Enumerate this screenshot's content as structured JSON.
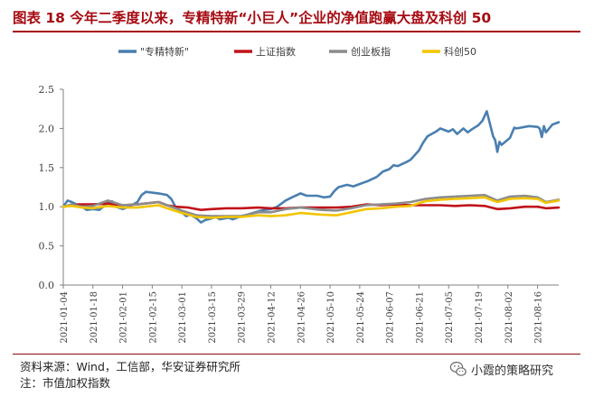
{
  "figure": {
    "title": "图表 18 今年二季度以来，专精特新“小巨人”企业的净值跑赢大盘及科创 50",
    "source": "资料来源：Wind，工信部，华安证券研究所",
    "note": "注：市值加权指数",
    "watermark": "小霞的策略研究",
    "watermark_icon": "wechat-icon",
    "accent_color": "#a60b12"
  },
  "chart_data": {
    "type": "line",
    "ylim": [
      0,
      2.5
    ],
    "yticks": [
      "0.0",
      "0.5",
      "1.0",
      "1.5",
      "2.0",
      "2.5"
    ],
    "ytick_values": [
      0,
      0.5,
      1.0,
      1.5,
      2.0,
      2.5
    ],
    "xlim": [
      "2021-01-04",
      "2021-08-26"
    ],
    "xticks": [
      "2021-01-04",
      "2021-01-18",
      "2021-02-01",
      "2021-02-15",
      "2021-03-01",
      "2021-03-15",
      "2021-03-29",
      "2021-04-12",
      "2021-04-26",
      "2021-05-10",
      "2021-05-24",
      "2021-06-07",
      "2021-06-21",
      "2021-07-05",
      "2021-07-19",
      "2021-08-02",
      "2021-08-16"
    ],
    "grid": false,
    "legend_position": "top",
    "series": [
      {
        "name": "\"专精特新\"",
        "color": "#4a7fb0",
        "points": [
          [
            "2021-01-04",
            1.0
          ],
          [
            "2021-01-06",
            1.08
          ],
          [
            "2021-01-08",
            1.06
          ],
          [
            "2021-01-11",
            1.02
          ],
          [
            "2021-01-13",
            1.0
          ],
          [
            "2021-01-15",
            0.96
          ],
          [
            "2021-01-18",
            0.97
          ],
          [
            "2021-01-21",
            0.96
          ],
          [
            "2021-01-25",
            1.05
          ],
          [
            "2021-01-27",
            1.07
          ],
          [
            "2021-01-29",
            1.0
          ],
          [
            "2021-02-01",
            0.97
          ],
          [
            "2021-02-04",
            1.0
          ],
          [
            "2021-02-08",
            1.06
          ],
          [
            "2021-02-10",
            1.15
          ],
          [
            "2021-02-12",
            1.19
          ],
          [
            "2021-02-18",
            1.17
          ],
          [
            "2021-02-22",
            1.15
          ],
          [
            "2021-02-24",
            1.1
          ],
          [
            "2021-02-26",
            1.0
          ],
          [
            "2021-03-01",
            0.93
          ],
          [
            "2021-03-03",
            0.88
          ],
          [
            "2021-03-05",
            0.9
          ],
          [
            "2021-03-08",
            0.85
          ],
          [
            "2021-03-10",
            0.8
          ],
          [
            "2021-03-12",
            0.83
          ],
          [
            "2021-03-15",
            0.85
          ],
          [
            "2021-03-17",
            0.87
          ],
          [
            "2021-03-19",
            0.84
          ],
          [
            "2021-03-23",
            0.86
          ],
          [
            "2021-03-25",
            0.84
          ],
          [
            "2021-03-29",
            0.88
          ],
          [
            "2021-04-01",
            0.9
          ],
          [
            "2021-04-06",
            0.94
          ],
          [
            "2021-04-09",
            0.96
          ],
          [
            "2021-04-12",
            0.97
          ],
          [
            "2021-04-15",
            1.0
          ],
          [
            "2021-04-19",
            1.08
          ],
          [
            "2021-04-22",
            1.12
          ],
          [
            "2021-04-26",
            1.17
          ],
          [
            "2021-04-29",
            1.14
          ],
          [
            "2021-05-04",
            1.14
          ],
          [
            "2021-05-07",
            1.12
          ],
          [
            "2021-05-10",
            1.13
          ],
          [
            "2021-05-12",
            1.2
          ],
          [
            "2021-05-14",
            1.25
          ],
          [
            "2021-05-18",
            1.28
          ],
          [
            "2021-05-21",
            1.26
          ],
          [
            "2021-05-24",
            1.29
          ],
          [
            "2021-05-26",
            1.31
          ],
          [
            "2021-05-28",
            1.33
          ],
          [
            "2021-06-01",
            1.38
          ],
          [
            "2021-06-04",
            1.45
          ],
          [
            "2021-06-07",
            1.48
          ],
          [
            "2021-06-09",
            1.53
          ],
          [
            "2021-06-11",
            1.52
          ],
          [
            "2021-06-15",
            1.57
          ],
          [
            "2021-06-17",
            1.6
          ],
          [
            "2021-06-21",
            1.72
          ],
          [
            "2021-06-23",
            1.82
          ],
          [
            "2021-06-25",
            1.9
          ],
          [
            "2021-06-29",
            1.96
          ],
          [
            "2021-07-01",
            2.0
          ],
          [
            "2021-07-05",
            1.96
          ],
          [
            "2021-07-07",
            1.99
          ],
          [
            "2021-07-09",
            1.93
          ],
          [
            "2021-07-12",
            2.0
          ],
          [
            "2021-07-14",
            1.95
          ],
          [
            "2021-07-16",
            1.99
          ],
          [
            "2021-07-19",
            2.04
          ],
          [
            "2021-07-21",
            2.1
          ],
          [
            "2021-07-23",
            2.22
          ],
          [
            "2021-07-26",
            1.9
          ],
          [
            "2021-07-27",
            1.85
          ],
          [
            "2021-07-28",
            1.7
          ],
          [
            "2021-07-29",
            1.83
          ],
          [
            "2021-07-30",
            1.79
          ],
          [
            "2021-08-03",
            1.88
          ],
          [
            "2021-08-05",
            2.01
          ],
          [
            "2021-08-06",
            2.0
          ],
          [
            "2021-08-10",
            2.02
          ],
          [
            "2021-08-12",
            2.03
          ],
          [
            "2021-08-16",
            2.02
          ],
          [
            "2021-08-17",
            2.0
          ],
          [
            "2021-08-18",
            1.89
          ],
          [
            "2021-08-19",
            2.03
          ],
          [
            "2021-08-20",
            1.95
          ],
          [
            "2021-08-23",
            2.05
          ],
          [
            "2021-08-26",
            2.08
          ]
        ]
      },
      {
        "name": "上证指数",
        "color": "#c0121a",
        "points": [
          [
            "2021-01-04",
            1.0
          ],
          [
            "2021-01-11",
            1.03
          ],
          [
            "2021-01-18",
            1.03
          ],
          [
            "2021-01-25",
            1.04
          ],
          [
            "2021-02-01",
            1.02
          ],
          [
            "2021-02-08",
            1.03
          ],
          [
            "2021-02-18",
            1.06
          ],
          [
            "2021-02-22",
            1.02
          ],
          [
            "2021-02-26",
            1.0
          ],
          [
            "2021-03-04",
            0.99
          ],
          [
            "2021-03-10",
            0.96
          ],
          [
            "2021-03-15",
            0.97
          ],
          [
            "2021-03-22",
            0.98
          ],
          [
            "2021-03-29",
            0.98
          ],
          [
            "2021-04-06",
            0.99
          ],
          [
            "2021-04-12",
            0.98
          ],
          [
            "2021-04-19",
            0.98
          ],
          [
            "2021-04-26",
            0.99
          ],
          [
            "2021-05-06",
            0.99
          ],
          [
            "2021-05-13",
            0.99
          ],
          [
            "2021-05-20",
            1.0
          ],
          [
            "2021-05-27",
            1.03
          ],
          [
            "2021-06-03",
            1.02
          ],
          [
            "2021-06-10",
            1.03
          ],
          [
            "2021-06-17",
            1.02
          ],
          [
            "2021-06-24",
            1.02
          ],
          [
            "2021-07-01",
            1.02
          ],
          [
            "2021-07-08",
            1.01
          ],
          [
            "2021-07-15",
            1.02
          ],
          [
            "2021-07-22",
            1.01
          ],
          [
            "2021-07-28",
            0.97
          ],
          [
            "2021-08-03",
            0.98
          ],
          [
            "2021-08-10",
            1.0
          ],
          [
            "2021-08-16",
            1.0
          ],
          [
            "2021-08-20",
            0.98
          ],
          [
            "2021-08-26",
            0.99
          ]
        ]
      },
      {
        "name": "创业板指",
        "color": "#8c8c8c",
        "points": [
          [
            "2021-01-04",
            1.0
          ],
          [
            "2021-01-08",
            1.03
          ],
          [
            "2021-01-13",
            1.0
          ],
          [
            "2021-01-18",
            1.01
          ],
          [
            "2021-01-25",
            1.08
          ],
          [
            "2021-02-01",
            1.02
          ],
          [
            "2021-02-08",
            1.03
          ],
          [
            "2021-02-18",
            1.06
          ],
          [
            "2021-02-22",
            1.02
          ],
          [
            "2021-03-01",
            0.95
          ],
          [
            "2021-03-08",
            0.89
          ],
          [
            "2021-03-15",
            0.88
          ],
          [
            "2021-03-22",
            0.88
          ],
          [
            "2021-03-29",
            0.88
          ],
          [
            "2021-04-06",
            0.93
          ],
          [
            "2021-04-12",
            0.93
          ],
          [
            "2021-04-19",
            0.97
          ],
          [
            "2021-04-26",
            0.99
          ],
          [
            "2021-05-06",
            0.96
          ],
          [
            "2021-05-13",
            0.95
          ],
          [
            "2021-05-20",
            0.98
          ],
          [
            "2021-05-27",
            1.02
          ],
          [
            "2021-06-03",
            1.03
          ],
          [
            "2021-06-10",
            1.04
          ],
          [
            "2021-06-17",
            1.06
          ],
          [
            "2021-06-24",
            1.1
          ],
          [
            "2021-07-01",
            1.12
          ],
          [
            "2021-07-08",
            1.13
          ],
          [
            "2021-07-15",
            1.14
          ],
          [
            "2021-07-22",
            1.15
          ],
          [
            "2021-07-28",
            1.08
          ],
          [
            "2021-08-03",
            1.13
          ],
          [
            "2021-08-10",
            1.14
          ],
          [
            "2021-08-16",
            1.12
          ],
          [
            "2021-08-20",
            1.06
          ],
          [
            "2021-08-26",
            1.09
          ]
        ]
      },
      {
        "name": "科创50",
        "color": "#f2c500",
        "points": [
          [
            "2021-01-04",
            1.0
          ],
          [
            "2021-01-08",
            1.01
          ],
          [
            "2021-01-13",
            0.99
          ],
          [
            "2021-01-18",
            0.98
          ],
          [
            "2021-01-25",
            1.01
          ],
          [
            "2021-02-01",
            0.99
          ],
          [
            "2021-02-08",
            0.99
          ],
          [
            "2021-02-18",
            1.02
          ],
          [
            "2021-02-22",
            0.98
          ],
          [
            "2021-03-01",
            0.92
          ],
          [
            "2021-03-08",
            0.87
          ],
          [
            "2021-03-15",
            0.86
          ],
          [
            "2021-03-22",
            0.87
          ],
          [
            "2021-03-29",
            0.87
          ],
          [
            "2021-04-06",
            0.89
          ],
          [
            "2021-04-12",
            0.88
          ],
          [
            "2021-04-19",
            0.89
          ],
          [
            "2021-04-26",
            0.92
          ],
          [
            "2021-05-06",
            0.9
          ],
          [
            "2021-05-13",
            0.89
          ],
          [
            "2021-05-20",
            0.93
          ],
          [
            "2021-05-27",
            0.97
          ],
          [
            "2021-06-03",
            0.98
          ],
          [
            "2021-06-10",
            1.0
          ],
          [
            "2021-06-17",
            1.01
          ],
          [
            "2021-06-24",
            1.07
          ],
          [
            "2021-07-01",
            1.09
          ],
          [
            "2021-07-08",
            1.1
          ],
          [
            "2021-07-15",
            1.11
          ],
          [
            "2021-07-22",
            1.12
          ],
          [
            "2021-07-28",
            1.06
          ],
          [
            "2021-08-03",
            1.1
          ],
          [
            "2021-08-10",
            1.11
          ],
          [
            "2021-08-16",
            1.1
          ],
          [
            "2021-08-20",
            1.05
          ],
          [
            "2021-08-26",
            1.08
          ]
        ]
      }
    ]
  }
}
